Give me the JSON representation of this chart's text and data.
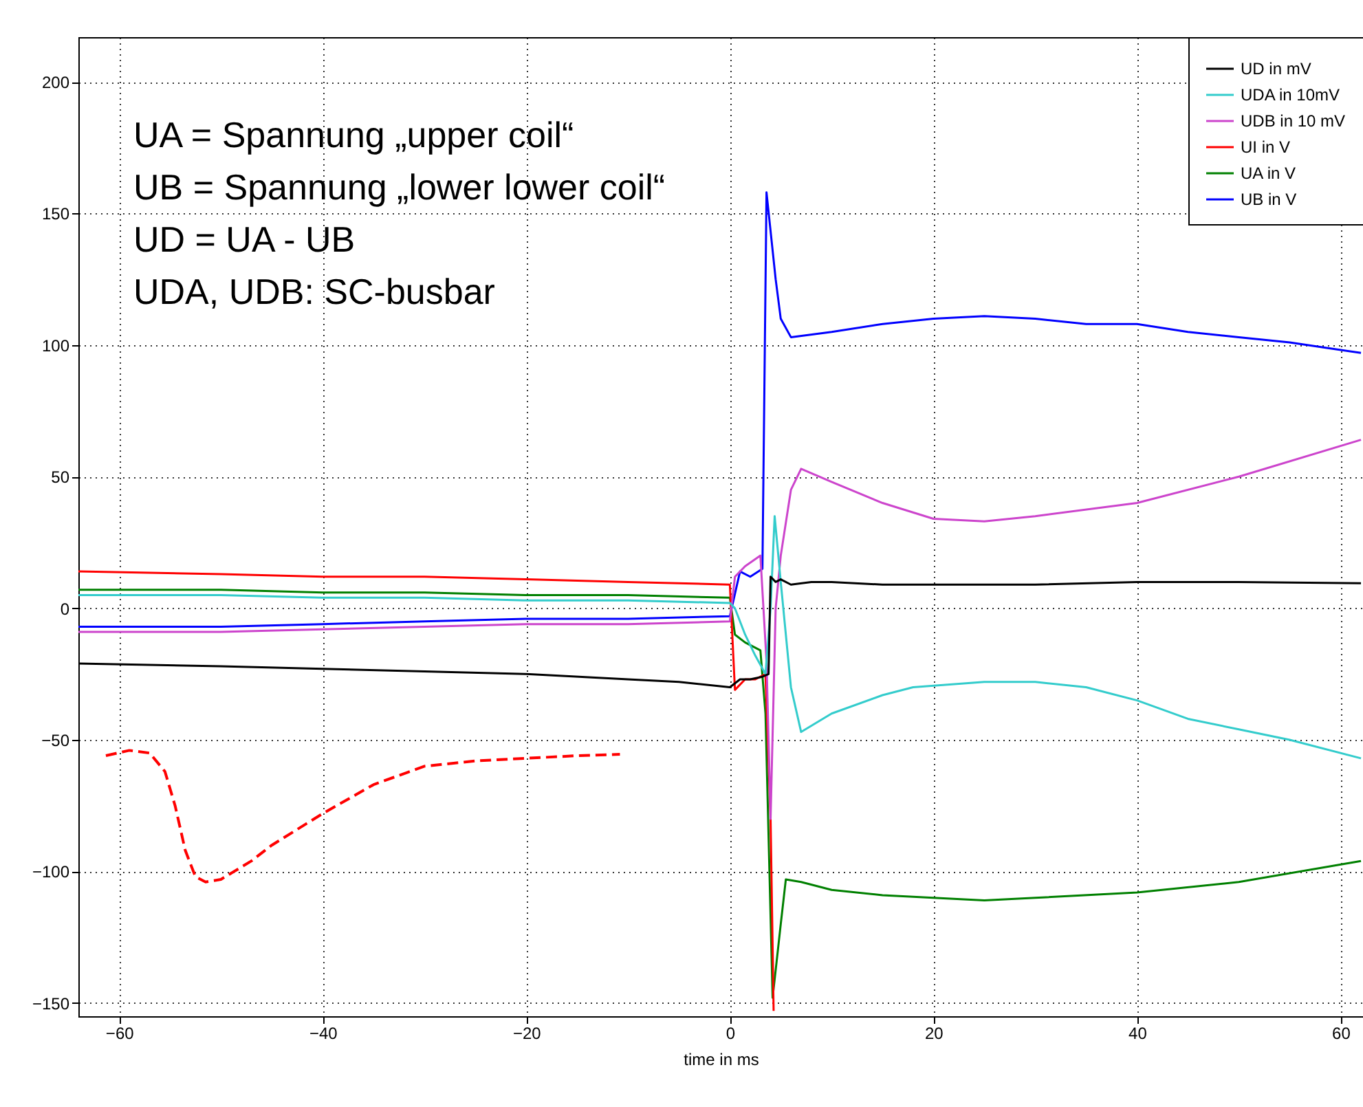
{
  "chart_data": {
    "type": "line",
    "xlabel": "time in ms",
    "xlim": [
      -64,
      62.2
    ],
    "ylim": [
      -155,
      217
    ],
    "xticks": [
      -60,
      -40,
      -20,
      0,
      20,
      40,
      60
    ],
    "yticks": [
      -150,
      -100,
      -50,
      0,
      50,
      100,
      150,
      200
    ],
    "grid": true,
    "legend": "top right",
    "line_style": "solid",
    "marker": "none",
    "annotations": [
      "UA = Spannung „upper coil“",
      "UB = Spannung „lower lower coil“",
      "UD = UA - UB",
      "UDA, UDB: SC-busbar"
    ],
    "series": [
      {
        "name": "UD in mV",
        "color": "#000000",
        "x": [
          -64,
          -50,
          -40,
          -30,
          -20,
          -10,
          -5,
          0,
          1,
          2,
          3.2,
          3.8,
          4.0,
          4.5,
          5,
          6,
          8,
          10,
          15,
          20,
          25,
          30,
          40,
          50,
          62
        ],
        "values": [
          -21,
          -22,
          -23,
          -24,
          -25,
          -27,
          -28,
          -30,
          -27,
          -27,
          -26,
          -25,
          12,
          10,
          11,
          9,
          10,
          10,
          9,
          9,
          9,
          9,
          10,
          10,
          9.5
        ]
      },
      {
        "name": "UDA in 10mV",
        "color": "#33cccc",
        "x": [
          -64,
          -50,
          -40,
          -30,
          -20,
          -10,
          0,
          0.5,
          1.5,
          2.5,
          3.5,
          4.0,
          4.4,
          5,
          6,
          7,
          10,
          15,
          18,
          25,
          30,
          35,
          40,
          45,
          50,
          55,
          62
        ],
        "values": [
          5,
          5,
          4,
          4,
          3,
          3,
          2,
          0,
          -10,
          -18,
          -25,
          0,
          35,
          10,
          -30,
          -47,
          -40,
          -33,
          -30,
          -28,
          -28,
          -30,
          -35,
          -42,
          -46,
          -50,
          -57
        ]
      },
      {
        "name": "UDB in 10 mV",
        "color": "#cc44cc",
        "x": [
          -64,
          -50,
          -40,
          -30,
          -20,
          -10,
          0,
          0.5,
          1.5,
          3,
          3.6,
          4.0,
          4.5,
          5,
          6,
          7,
          10,
          15,
          20,
          25,
          30,
          40,
          50,
          62
        ],
        "values": [
          -9,
          -9,
          -8,
          -7,
          -6,
          -6,
          -5,
          12,
          16,
          20,
          -20,
          -80,
          0,
          20,
          45,
          53,
          48,
          40,
          34,
          33,
          35,
          40,
          50,
          64
        ]
      },
      {
        "name": "UI in V",
        "color": "#ff0000",
        "x": [
          -64,
          -50,
          -40,
          -30,
          -20,
          -10,
          0,
          0.5,
          1.5,
          2.5,
          3.5,
          4.0,
          4.3
        ],
        "values": [
          14,
          13,
          12,
          12,
          11,
          10,
          9,
          -31,
          -27,
          -27,
          -25,
          -80,
          -153
        ]
      },
      {
        "name": "UA in V",
        "color": "#008000",
        "x": [
          -64,
          -50,
          -40,
          -30,
          -20,
          -10,
          0,
          0.5,
          1.5,
          3,
          3.5,
          4.2,
          5.0,
          5.5,
          7,
          10,
          15,
          20,
          25,
          30,
          40,
          50,
          62
        ],
        "values": [
          7,
          7,
          6,
          6,
          5,
          5,
          4,
          -10,
          -13,
          -16,
          -40,
          -148,
          -120,
          -103,
          -104,
          -107,
          -109,
          -110,
          -111,
          -110,
          -108,
          -104,
          -96
        ]
      },
      {
        "name": "UB in V",
        "color": "#0000ff",
        "x": [
          -64,
          -50,
          -40,
          -30,
          -20,
          -10,
          0,
          1,
          2,
          3.2,
          3.6,
          4.5,
          5,
          6,
          10,
          15,
          20,
          25,
          30,
          35,
          40,
          45,
          50,
          55,
          62
        ],
        "values": [
          -7,
          -7,
          -6,
          -5,
          -4,
          -4,
          -3,
          14,
          12,
          15,
          158,
          125,
          110,
          103,
          105,
          108,
          110,
          111,
          110,
          108,
          108,
          105,
          103,
          101,
          97
        ]
      },
      {
        "color": "#ff0000",
        "line_style": "dashed",
        "x": [
          -61.3,
          -59,
          -57,
          -55.5,
          -54.5,
          -53.5,
          -52.5,
          -51.5,
          -50,
          -47,
          -45,
          -40,
          -35,
          -30,
          -25,
          -20,
          -15,
          -10.8
        ],
        "values": [
          -56,
          -54,
          -55,
          -62,
          -75,
          -92,
          -102,
          -104,
          -103,
          -96,
          -90,
          -78,
          -67,
          -60,
          -58,
          -57,
          -56,
          -55.5
        ]
      }
    ]
  }
}
